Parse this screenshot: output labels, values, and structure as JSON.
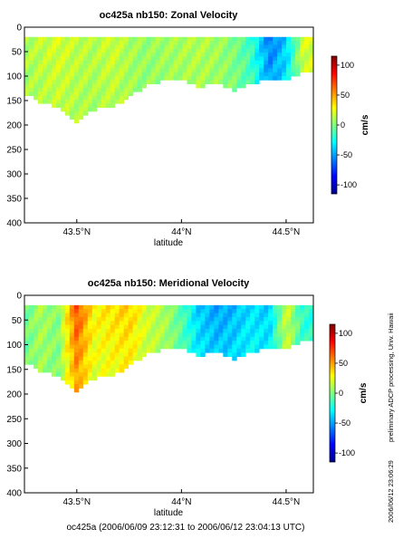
{
  "chart_data": [
    {
      "type": "heatmap",
      "title": "oc425a nb150: Zonal Velocity",
      "xlabel": "latitude",
      "ylabel": "",
      "x_ticks": [
        "43.5°N",
        "44°N",
        "44.5°N"
      ],
      "x_tick_values": [
        43.5,
        44.0,
        44.5
      ],
      "xlim": [
        43.25,
        44.63
      ],
      "y_ticks": [
        "0",
        "50",
        "100",
        "150",
        "200",
        "250",
        "300",
        "350",
        "400"
      ],
      "y_tick_values": [
        0,
        50,
        100,
        150,
        200,
        250,
        300,
        350,
        400
      ],
      "ylim": [
        400,
        0
      ],
      "colorbar": {
        "label": "cm/s",
        "ticks": [
          "100",
          "50",
          "0",
          "-50",
          "-100"
        ],
        "tick_values": [
          100,
          50,
          0,
          -50,
          -100
        ],
        "range": [
          -115,
          115
        ]
      },
      "values": {
        "lat": [
          43.25,
          43.33,
          43.41,
          43.5,
          43.58,
          43.67,
          43.75,
          43.83,
          43.92,
          44.0,
          44.08,
          44.17,
          44.25,
          44.33,
          44.42,
          44.5,
          44.58
        ],
        "max_depth": [
          130,
          150,
          160,
          190,
          165,
          160,
          140,
          115,
          105,
          100,
          120,
          110,
          125,
          110,
          105,
          105,
          90
        ],
        "velocity": [
          10,
          15,
          20,
          15,
          12,
          18,
          10,
          5,
          8,
          10,
          12,
          8,
          0,
          -15,
          -60,
          -40,
          20
        ]
      }
    },
    {
      "type": "heatmap",
      "title": "oc425a nb150: Meridional Velocity",
      "xlabel": "latitude",
      "ylabel": "",
      "x_ticks": [
        "43.5°N",
        "44°N",
        "44.5°N"
      ],
      "x_tick_values": [
        43.5,
        44.0,
        44.5
      ],
      "xlim": [
        43.25,
        44.63
      ],
      "y_ticks": [
        "0",
        "50",
        "100",
        "150",
        "200",
        "250",
        "300",
        "350",
        "400"
      ],
      "y_tick_values": [
        0,
        50,
        100,
        150,
        200,
        250,
        300,
        350,
        400
      ],
      "ylim": [
        400,
        0
      ],
      "colorbar": {
        "label": "cm/s",
        "ticks": [
          "100",
          "50",
          "0",
          "-50",
          "-100"
        ],
        "tick_values": [
          100,
          50,
          0,
          -50,
          -100
        ],
        "range": [
          -115,
          115
        ]
      },
      "values": {
        "lat": [
          43.25,
          43.33,
          43.41,
          43.5,
          43.58,
          43.67,
          43.75,
          43.83,
          43.92,
          44.0,
          44.08,
          44.17,
          44.25,
          44.33,
          44.42,
          44.5,
          44.58
        ],
        "max_depth": [
          130,
          150,
          160,
          190,
          165,
          160,
          140,
          115,
          105,
          100,
          120,
          110,
          125,
          110,
          105,
          105,
          90
        ],
        "velocity": [
          -5,
          10,
          0,
          70,
          30,
          35,
          40,
          20,
          10,
          -10,
          -40,
          -50,
          -45,
          -35,
          -40,
          20,
          -20
        ]
      }
    }
  ],
  "side_text": "preliminary ADCP processing,   Univ. Hawaii",
  "side_date": "2006/06/12 23:06:29",
  "footer": "oc425a (2006/06/09 23:12:31 to 2006/06/12 23:04:13 UTC)"
}
